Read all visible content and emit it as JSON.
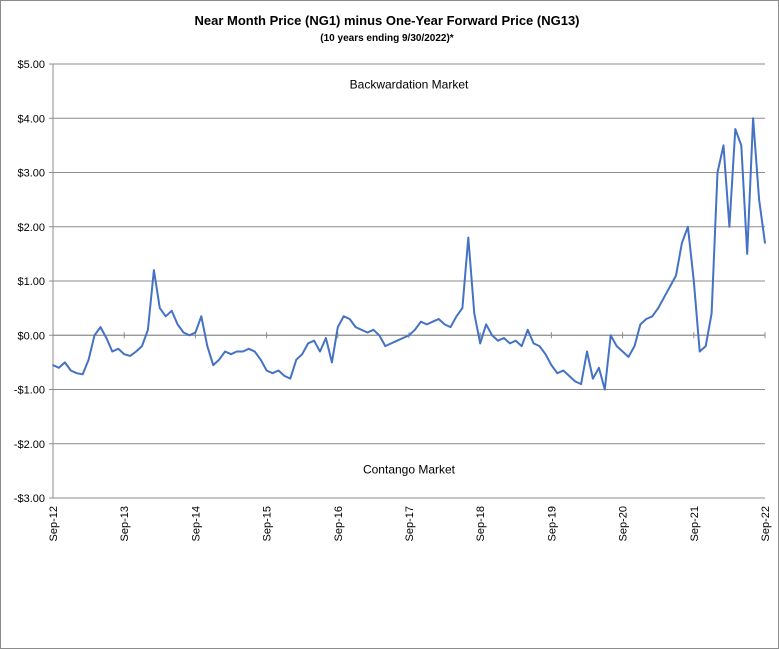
{
  "chart_data": {
    "type": "line",
    "title": "Near Month Price (NG1) minus One-Year Forward Price (NG13)",
    "subtitle": "(10 years ending  9/30/2022)*",
    "xlabel": "",
    "ylabel": "",
    "ylim": [
      -3,
      5
    ],
    "y_ticks": [
      {
        "value": 5,
        "label": "$5.00"
      },
      {
        "value": 4,
        "label": "$4.00"
      },
      {
        "value": 3,
        "label": "$3.00"
      },
      {
        "value": 2,
        "label": "$2.00"
      },
      {
        "value": 1,
        "label": "$1.00"
      },
      {
        "value": 0,
        "label": "$0.00"
      },
      {
        "value": -1,
        "label": "-$1.00"
      },
      {
        "value": -2,
        "label": "-$2.00"
      },
      {
        "value": -3,
        "label": "-$3.00"
      }
    ],
    "x_ticks": [
      "Sep-12",
      "Sep-13",
      "Sep-14",
      "Sep-15",
      "Sep-16",
      "Sep-17",
      "Sep-18",
      "Sep-19",
      "Sep-20",
      "Sep-21",
      "Sep-22"
    ],
    "xlim": [
      "2012-09",
      "2022-09"
    ],
    "grid": true,
    "annotations": [
      {
        "text": "Backwardation Market",
        "x": "2017-09",
        "y": 4.55
      },
      {
        "text": "Contango Market",
        "x": "2017-09",
        "y": -2.55
      }
    ],
    "color": "#4472C4",
    "series": [
      {
        "x": [
          "2012-09",
          "2012-10",
          "2012-11",
          "2012-12",
          "2013-01",
          "2013-02",
          "2013-03",
          "2013-04",
          "2013-05",
          "2013-06",
          "2013-07",
          "2013-08",
          "2013-09",
          "2013-10",
          "2013-11",
          "2013-12",
          "2014-01",
          "2014-02",
          "2014-03",
          "2014-04",
          "2014-05",
          "2014-06",
          "2014-07",
          "2014-08",
          "2014-09",
          "2014-10",
          "2014-11",
          "2014-12",
          "2015-01",
          "2015-02",
          "2015-03",
          "2015-04",
          "2015-05",
          "2015-06",
          "2015-07",
          "2015-08",
          "2015-09",
          "2015-10",
          "2015-11",
          "2015-12",
          "2016-01",
          "2016-02",
          "2016-03",
          "2016-04",
          "2016-05",
          "2016-06",
          "2016-07",
          "2016-08",
          "2016-09",
          "2016-10",
          "2016-11",
          "2016-12",
          "2017-01",
          "2017-02",
          "2017-03",
          "2017-04",
          "2017-05",
          "2017-06",
          "2017-07",
          "2017-08",
          "2017-09",
          "2017-10",
          "2017-11",
          "2017-12",
          "2018-01",
          "2018-02",
          "2018-03",
          "2018-04",
          "2018-05",
          "2018-06",
          "2018-07",
          "2018-08",
          "2018-09",
          "2018-10",
          "2018-11",
          "2018-12",
          "2019-01",
          "2019-02",
          "2019-03",
          "2019-04",
          "2019-05",
          "2019-06",
          "2019-07",
          "2019-08",
          "2019-09",
          "2019-10",
          "2019-11",
          "2019-12",
          "2020-01",
          "2020-02",
          "2020-03",
          "2020-04",
          "2020-05",
          "2020-06",
          "2020-07",
          "2020-08",
          "2020-09",
          "2020-10",
          "2020-11",
          "2020-12",
          "2021-01",
          "2021-02",
          "2021-03",
          "2021-04",
          "2021-05",
          "2021-06",
          "2021-07",
          "2021-08",
          "2021-09",
          "2021-10",
          "2021-11",
          "2021-12",
          "2022-01",
          "2022-02",
          "2022-03",
          "2022-04",
          "2022-05",
          "2022-06",
          "2022-07",
          "2022-08",
          "2022-09"
        ],
        "values": [
          -0.55,
          -0.6,
          -0.5,
          -0.65,
          -0.7,
          -0.72,
          -0.45,
          0.0,
          0.15,
          -0.05,
          -0.3,
          -0.25,
          -0.35,
          -0.38,
          -0.3,
          -0.2,
          0.1,
          1.2,
          0.5,
          0.35,
          0.45,
          0.2,
          0.05,
          0.0,
          0.05,
          0.35,
          -0.2,
          -0.55,
          -0.45,
          -0.3,
          -0.35,
          -0.3,
          -0.3,
          -0.25,
          -0.3,
          -0.45,
          -0.65,
          -0.7,
          -0.65,
          -0.75,
          -0.8,
          -0.45,
          -0.35,
          -0.15,
          -0.1,
          -0.3,
          -0.05,
          -0.5,
          0.15,
          0.35,
          0.3,
          0.15,
          0.1,
          0.05,
          0.1,
          0.0,
          -0.2,
          -0.15,
          -0.1,
          -0.05,
          0.0,
          0.1,
          0.25,
          0.2,
          0.25,
          0.3,
          0.2,
          0.15,
          0.35,
          0.5,
          1.8,
          0.4,
          -0.15,
          0.2,
          0.0,
          -0.1,
          -0.05,
          -0.15,
          -0.1,
          -0.2,
          0.1,
          -0.15,
          -0.2,
          -0.35,
          -0.55,
          -0.7,
          -0.65,
          -0.75,
          -0.85,
          -0.9,
          -0.3,
          -0.8,
          -0.6,
          -1.0,
          0.0,
          -0.2,
          -0.3,
          -0.4,
          -0.2,
          0.2,
          0.3,
          0.35,
          0.5,
          0.7,
          0.9,
          1.1,
          1.7,
          2.0,
          1.0,
          -0.3,
          -0.2,
          0.4,
          3.0,
          3.5,
          2.0,
          3.8,
          3.5,
          1.5,
          4.0,
          2.5,
          1.7
        ]
      }
    ]
  }
}
